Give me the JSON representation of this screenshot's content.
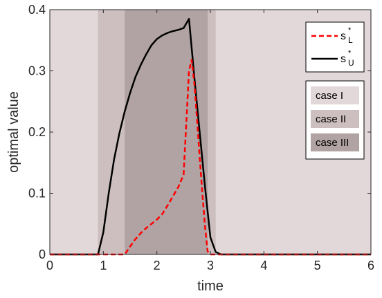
{
  "chart_data": {
    "type": "line",
    "title": "",
    "xlabel": "time",
    "ylabel": "optimal value",
    "xlim": [
      0,
      6
    ],
    "ylim": [
      0,
      0.4
    ],
    "xticks": [
      "0",
      "1",
      "2",
      "3",
      "4",
      "5",
      "6"
    ],
    "yticks": [
      "0",
      "0.1",
      "0.2",
      "0.3",
      "0.4"
    ],
    "grid": false,
    "colors": {
      "case1": "#e3d8d9",
      "case2": "#cdbfc0",
      "case3": "#b1a3a4",
      "sL": "#ff0000",
      "sU": "#000000"
    },
    "regions": [
      {
        "label": "case I",
        "x": [
          0,
          6
        ]
      },
      {
        "label": "case II",
        "x": [
          0.9,
          3.1
        ]
      },
      {
        "label": "case III",
        "x": [
          1.4,
          2.95
        ]
      }
    ],
    "series": [
      {
        "name": "s",
        "name_sup": "*",
        "name_sub": "U",
        "style": "solid",
        "x": [
          0,
          0.9,
          1.0,
          1.1,
          1.2,
          1.3,
          1.4,
          1.5,
          1.6,
          1.7,
          1.8,
          1.9,
          2.0,
          2.1,
          2.2,
          2.3,
          2.4,
          2.5,
          2.6,
          2.7,
          2.8,
          2.9,
          3.0,
          3.1,
          3.2,
          6.0
        ],
        "y": [
          0,
          0,
          0.036,
          0.1,
          0.155,
          0.198,
          0.234,
          0.264,
          0.29,
          0.31,
          0.327,
          0.342,
          0.352,
          0.358,
          0.362,
          0.365,
          0.367,
          0.37,
          0.385,
          0.29,
          0.2,
          0.11,
          0.028,
          0.004,
          0,
          0
        ]
      },
      {
        "name": "s",
        "name_sup": "*",
        "name_sub": "L",
        "style": "dashed",
        "x": [
          0,
          1.4,
          1.5,
          1.6,
          1.7,
          1.8,
          1.9,
          2.0,
          2.1,
          2.2,
          2.3,
          2.4,
          2.5,
          2.6,
          2.65,
          2.7,
          2.75,
          2.8,
          2.85,
          2.9,
          2.95,
          3.0,
          6.0
        ],
        "y": [
          0,
          0,
          0.013,
          0.025,
          0.035,
          0.043,
          0.05,
          0.057,
          0.066,
          0.08,
          0.095,
          0.11,
          0.13,
          0.3,
          0.318,
          0.28,
          0.22,
          0.16,
          0.1,
          0.045,
          0.005,
          0,
          0
        ]
      }
    ],
    "legend": {
      "placement": "top-right",
      "lines": [
        {
          "sym": "s",
          "sup": "*",
          "sub": "L",
          "style": "dashed"
        },
        {
          "sym": "s",
          "sup": "*",
          "sub": "U",
          "style": "solid"
        }
      ],
      "cases": [
        "case I",
        "case II",
        "case III"
      ]
    }
  }
}
